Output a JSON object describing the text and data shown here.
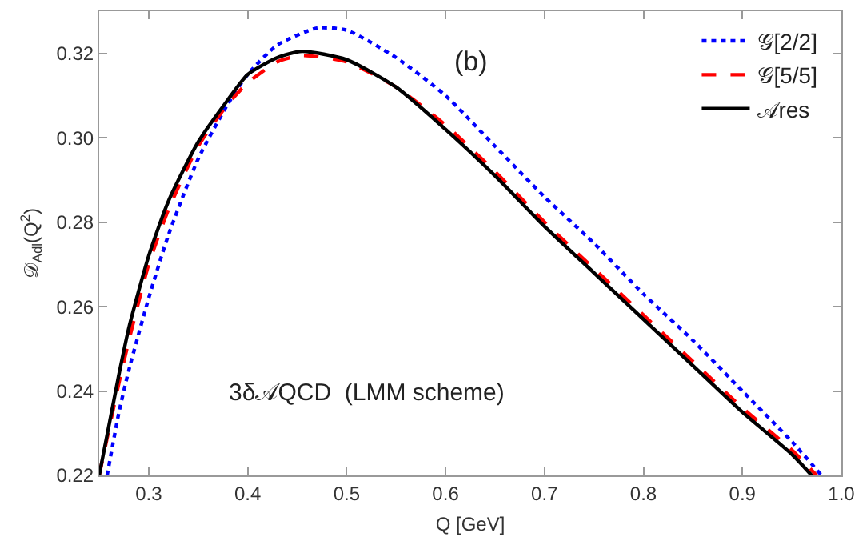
{
  "chart_data": {
    "type": "line",
    "xlabel": "Q [GeV]",
    "ylabel": "𝒟$_{Adl}$(Q$^{2}$)",
    "xlim": [
      0.25,
      1.0
    ],
    "ylim": [
      0.22,
      0.33
    ],
    "xticks": [
      0.3,
      0.4,
      0.5,
      0.6,
      0.7,
      0.8,
      0.9,
      {
        "value": 1.0,
        "label": "1.0"
      }
    ],
    "yticks": [
      0.22,
      0.24,
      0.26,
      0.28,
      {
        "value": 0.3,
        "label": "0.30"
      },
      0.32
    ],
    "grid": false,
    "legend": "top right",
    "marker": "none",
    "annotations": [
      "(b)",
      "3δ𝒜QCD  (LMM scheme)"
    ],
    "series": [
      {
        "name": "𝒢[2/2]",
        "color": "#0000ff",
        "line_style": "dotted",
        "x": [
          0.258,
          0.27,
          0.28,
          0.3,
          0.32,
          0.35,
          0.38,
          0.4,
          0.43,
          0.47,
          0.5,
          0.55,
          0.6,
          0.65,
          0.7,
          0.75,
          0.8,
          0.85,
          0.9,
          0.95,
          0.98
        ],
        "values": [
          0.22,
          0.235,
          0.245,
          0.262,
          0.277,
          0.295,
          0.308,
          0.315,
          0.322,
          0.326,
          0.3255,
          0.319,
          0.31,
          0.298,
          0.286,
          0.275,
          0.263,
          0.252,
          0.24,
          0.228,
          0.22
        ]
      },
      {
        "name": "𝒢[5/5]",
        "color": "#ff0000",
        "line_style": "dashed",
        "x": [
          0.25,
          0.27,
          0.28,
          0.3,
          0.32,
          0.35,
          0.38,
          0.4,
          0.43,
          0.455,
          0.5,
          0.55,
          0.6,
          0.65,
          0.7,
          0.75,
          0.8,
          0.85,
          0.9,
          0.95,
          0.975
        ],
        "values": [
          0.22,
          0.242,
          0.252,
          0.27,
          0.283,
          0.298,
          0.308,
          0.313,
          0.318,
          0.3195,
          0.318,
          0.312,
          0.303,
          0.292,
          0.28,
          0.269,
          0.258,
          0.247,
          0.236,
          0.226,
          0.22
        ]
      },
      {
        "name": "𝒜res",
        "color": "#000000",
        "line_style": "solid",
        "x": [
          0.25,
          0.27,
          0.28,
          0.3,
          0.32,
          0.35,
          0.38,
          0.4,
          0.43,
          0.455,
          0.5,
          0.55,
          0.6,
          0.65,
          0.7,
          0.75,
          0.8,
          0.85,
          0.9,
          0.95,
          0.97
        ],
        "values": [
          0.22,
          0.244,
          0.255,
          0.272,
          0.285,
          0.299,
          0.309,
          0.315,
          0.319,
          0.3205,
          0.3185,
          0.312,
          0.302,
          0.291,
          0.279,
          0.268,
          0.257,
          0.246,
          0.235,
          0.225,
          0.22
        ]
      }
    ]
  }
}
